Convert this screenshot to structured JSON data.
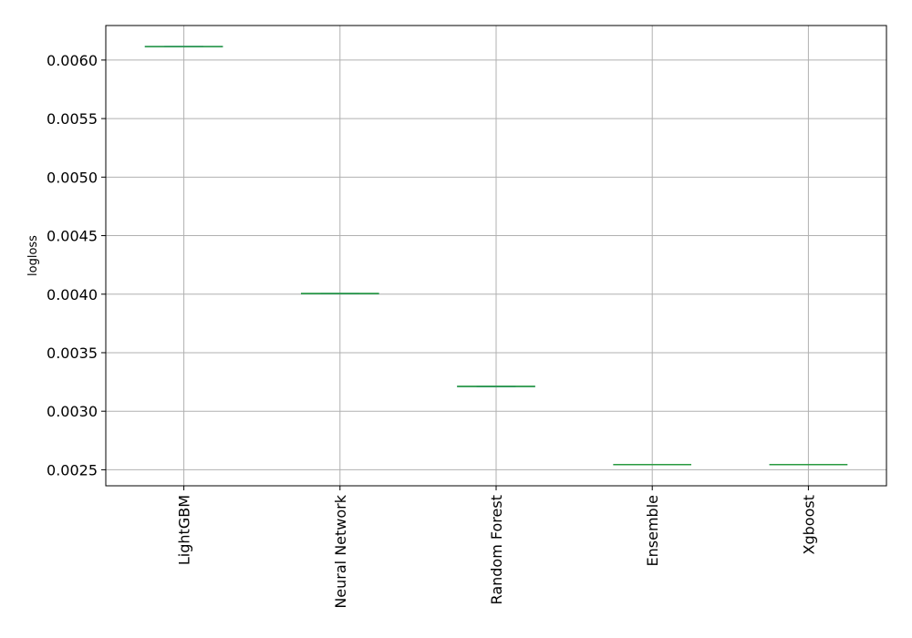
{
  "chart_data": {
    "type": "boxplot",
    "title": "",
    "xlabel": "",
    "ylabel": "logloss",
    "categories": [
      "LightGBM",
      "Neural Network",
      "Random Forest",
      "Ensemble",
      "Xgboost"
    ],
    "values": [
      0.006115,
      0.004005,
      0.003212,
      0.002544,
      0.002544
    ],
    "ylim": [
      0.002363,
      0.006295
    ],
    "yticks": [
      0.0025,
      0.003,
      0.0035,
      0.004,
      0.0045,
      0.005,
      0.0055,
      0.006
    ],
    "ytick_labels": [
      "0.0025",
      "0.0030",
      "0.0035",
      "0.0040",
      "0.0045",
      "0.0050",
      "0.0055",
      "0.0060"
    ],
    "grid": true,
    "legend": "none",
    "colors": {
      "median": "#2ca02c",
      "box": "#1f77b4",
      "grid": "#b0b0b0",
      "axes": "#000000"
    }
  }
}
